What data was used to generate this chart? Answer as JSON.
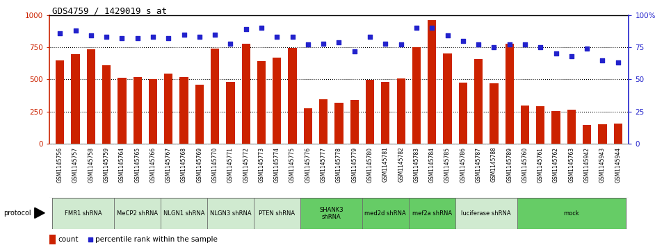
{
  "title": "GDS4759 / 1429019_s_at",
  "samples": [
    "GSM1145756",
    "GSM1145757",
    "GSM1145758",
    "GSM1145759",
    "GSM1145764",
    "GSM1145765",
    "GSM1145766",
    "GSM1145767",
    "GSM1145768",
    "GSM1145769",
    "GSM1145770",
    "GSM1145771",
    "GSM1145772",
    "GSM1145773",
    "GSM1145774",
    "GSM1145775",
    "GSM1145776",
    "GSM1145777",
    "GSM1145778",
    "GSM1145779",
    "GSM1145780",
    "GSM1145781",
    "GSM1145782",
    "GSM1145783",
    "GSM1145784",
    "GSM1145785",
    "GSM1145786",
    "GSM1145787",
    "GSM1145788",
    "GSM1145789",
    "GSM1145760",
    "GSM1145761",
    "GSM1145762",
    "GSM1145763",
    "GSM1145942",
    "GSM1145943",
    "GSM1145944"
  ],
  "counts": [
    650,
    695,
    735,
    610,
    510,
    520,
    500,
    545,
    520,
    460,
    740,
    480,
    780,
    640,
    670,
    745,
    275,
    345,
    320,
    340,
    495,
    480,
    505,
    750,
    960,
    700,
    475,
    660,
    470,
    775,
    295,
    290,
    255,
    265,
    145,
    150,
    155
  ],
  "percentiles": [
    86,
    88,
    84,
    83,
    82,
    82,
    83,
    82,
    85,
    83,
    85,
    78,
    89,
    90,
    83,
    83,
    77,
    78,
    79,
    72,
    83,
    78,
    77,
    90,
    90,
    84,
    80,
    77,
    75,
    77,
    77,
    75,
    70,
    68,
    74,
    65,
    63
  ],
  "protocols": [
    {
      "label": "FMR1 shRNA",
      "start": 0,
      "end": 4,
      "color": "#d0ead0"
    },
    {
      "label": "MeCP2 shRNA",
      "start": 4,
      "end": 7,
      "color": "#d0ead0"
    },
    {
      "label": "NLGN1 shRNA",
      "start": 7,
      "end": 10,
      "color": "#d0ead0"
    },
    {
      "label": "NLGN3 shRNA",
      "start": 10,
      "end": 13,
      "color": "#d0ead0"
    },
    {
      "label": "PTEN shRNA",
      "start": 13,
      "end": 16,
      "color": "#d0ead0"
    },
    {
      "label": "SHANK3\nshRNA",
      "start": 16,
      "end": 20,
      "color": "#66cc66"
    },
    {
      "label": "med2d shRNA",
      "start": 20,
      "end": 23,
      "color": "#66cc66"
    },
    {
      "label": "mef2a shRNA",
      "start": 23,
      "end": 26,
      "color": "#66cc66"
    },
    {
      "label": "luciferase shRNA",
      "start": 26,
      "end": 30,
      "color": "#d0ead0"
    },
    {
      "label": "mock",
      "start": 30,
      "end": 37,
      "color": "#66cc66"
    }
  ],
  "bar_color": "#cc2200",
  "dot_color": "#2222cc",
  "bg_color": "#ffffff",
  "sample_label_bg": "#cccccc",
  "ylim_left": [
    0,
    1000
  ],
  "ylim_right": [
    0,
    100
  ],
  "yticks_left": [
    0,
    250,
    500,
    750,
    1000
  ],
  "yticks_right": [
    0,
    25,
    50,
    75,
    100
  ],
  "grid_lines": [
    250,
    500,
    750
  ]
}
